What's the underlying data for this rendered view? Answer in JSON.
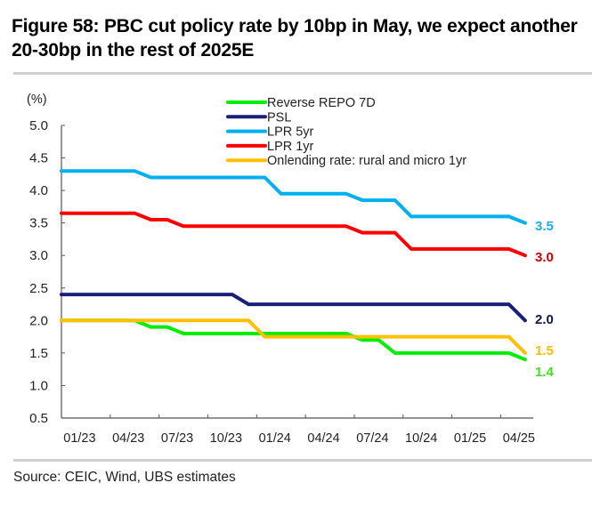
{
  "title": "Figure 58: PBC cut policy rate by 10bp in May, we expect another 20-30bp in the rest of 2025E",
  "source": "Source: CEIC, Wind, UBS estimates",
  "chart_data": {
    "type": "line",
    "title": "Figure 58: PBC cut policy rate by 10bp in May, we expect another 20-30bp in the rest of 2025E",
    "xlabel": "",
    "ylabel": "(%)",
    "ylim": [
      0.5,
      5.0
    ],
    "yticks": [
      "5.0",
      "4.5",
      "4.0",
      "3.5",
      "3.0",
      "2.5",
      "2.0",
      "1.5",
      "1.0",
      "0.5"
    ],
    "ytick_values": [
      5.0,
      4.5,
      4.0,
      3.5,
      3.0,
      2.5,
      2.0,
      1.5,
      1.0,
      0.5
    ],
    "xticks": [
      "01/23",
      "04/23",
      "07/23",
      "10/23",
      "01/24",
      "04/24",
      "07/24",
      "10/24",
      "01/25",
      "04/25"
    ],
    "x": [
      "01/23",
      "02/23",
      "03/23",
      "04/23",
      "05/23",
      "06/23",
      "07/23",
      "08/23",
      "09/23",
      "10/23",
      "11/23",
      "12/23",
      "01/24",
      "02/24",
      "03/24",
      "04/24",
      "05/24",
      "06/24",
      "07/24",
      "08/24",
      "09/24",
      "10/24",
      "11/24",
      "12/24",
      "01/25",
      "02/25",
      "03/25",
      "04/25",
      "05/25"
    ],
    "grid": false,
    "legend_position": "top-center",
    "series": [
      {
        "name": "Reverse REPO 7D",
        "color": "#00ee00",
        "end_label": "1.4",
        "label_color": "#44dd22",
        "values": [
          2.0,
          2.0,
          2.0,
          2.0,
          2.0,
          1.9,
          1.9,
          1.8,
          1.8,
          1.8,
          1.8,
          1.8,
          1.8,
          1.8,
          1.8,
          1.8,
          1.8,
          1.8,
          1.7,
          1.7,
          1.5,
          1.5,
          1.5,
          1.5,
          1.5,
          1.5,
          1.5,
          1.5,
          1.4
        ]
      },
      {
        "name": "PSL",
        "color": "#1a1f7a",
        "end_label": "2.0",
        "label_color": "#0d1a4a",
        "values": [
          2.4,
          2.4,
          2.4,
          2.4,
          2.4,
          2.4,
          2.4,
          2.4,
          2.4,
          2.4,
          2.4,
          2.25,
          2.25,
          2.25,
          2.25,
          2.25,
          2.25,
          2.25,
          2.25,
          2.25,
          2.25,
          2.25,
          2.25,
          2.25,
          2.25,
          2.25,
          2.25,
          2.25,
          2.0
        ]
      },
      {
        "name": "LPR 5yr",
        "color": "#00b0ee",
        "end_label": "3.5",
        "label_color": "#1aaee8",
        "values": [
          4.3,
          4.3,
          4.3,
          4.3,
          4.3,
          4.2,
          4.2,
          4.2,
          4.2,
          4.2,
          4.2,
          4.2,
          4.2,
          3.95,
          3.95,
          3.95,
          3.95,
          3.95,
          3.85,
          3.85,
          3.85,
          3.6,
          3.6,
          3.6,
          3.6,
          3.6,
          3.6,
          3.6,
          3.5
        ]
      },
      {
        "name": "LPR 1yr",
        "color": "#ff0000",
        "end_label": "3.0",
        "label_color": "#cc0000",
        "values": [
          3.65,
          3.65,
          3.65,
          3.65,
          3.65,
          3.55,
          3.55,
          3.45,
          3.45,
          3.45,
          3.45,
          3.45,
          3.45,
          3.45,
          3.45,
          3.45,
          3.45,
          3.45,
          3.35,
          3.35,
          3.35,
          3.1,
          3.1,
          3.1,
          3.1,
          3.1,
          3.1,
          3.1,
          3.0
        ]
      },
      {
        "name": "Onlending rate: rural and micro 1yr",
        "color": "#ffc000",
        "end_label": "1.5",
        "label_color": "#ffbb00",
        "values": [
          2.0,
          2.0,
          2.0,
          2.0,
          2.0,
          2.0,
          2.0,
          2.0,
          2.0,
          2.0,
          2.0,
          2.0,
          1.75,
          1.75,
          1.75,
          1.75,
          1.75,
          1.75,
          1.75,
          1.75,
          1.75,
          1.75,
          1.75,
          1.75,
          1.75,
          1.75,
          1.75,
          1.75,
          1.5
        ]
      }
    ]
  }
}
